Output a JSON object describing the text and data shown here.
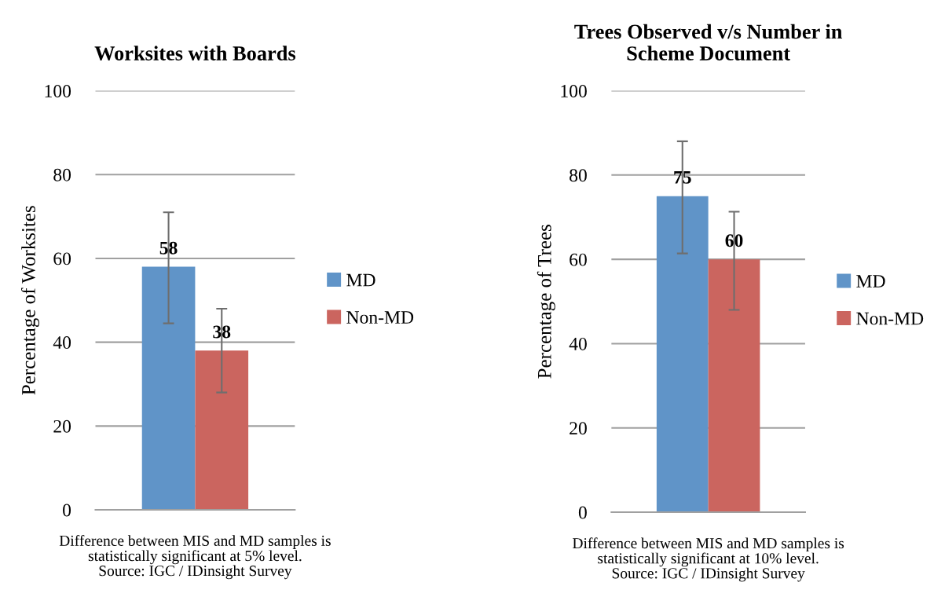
{
  "chart_data": [
    {
      "type": "bar",
      "title": "Worksites with Boards",
      "ylabel": "Percentage of Worksites",
      "categories": [
        null
      ],
      "series": [
        {
          "name": "MD",
          "color": "#6094c8",
          "values": [
            58
          ],
          "errors": [
            [
              44.5,
              71
            ]
          ]
        },
        {
          "name": "Non-MD",
          "color": "#cb655f",
          "values": [
            38
          ],
          "errors": [
            [
              28,
              48
            ]
          ]
        }
      ],
      "ylim": [
        0,
        100
      ],
      "yticks": [
        0,
        20,
        40,
        60,
        80,
        100
      ],
      "grid": "y",
      "legend": "right",
      "data_labels": true,
      "annotations": [
        "Difference between MIS and MD samples is\nstatistically significant at 5% level.\nSource: IGC / IDinsight Survey"
      ]
    },
    {
      "type": "bar",
      "title": "Trees Observed v/s Number in\nScheme Document",
      "ylabel": "Percentage of Trees",
      "categories": [
        null
      ],
      "series": [
        {
          "name": "MD",
          "color": "#6094c8",
          "values": [
            75
          ],
          "errors": [
            [
              61.4,
              88
            ]
          ]
        },
        {
          "name": "Non-MD",
          "color": "#cb655f",
          "values": [
            60
          ],
          "errors": [
            [
              48,
              71.3
            ]
          ]
        }
      ],
      "ylim": [
        0,
        100
      ],
      "yticks": [
        0,
        20,
        40,
        60,
        80,
        100
      ],
      "grid": "y",
      "legend": "right",
      "data_labels": true,
      "annotations": [
        "Difference between MIS and MD samples is\nstatistically significant at 10% level.\nSource: IGC / IDinsight Survey"
      ]
    }
  ]
}
